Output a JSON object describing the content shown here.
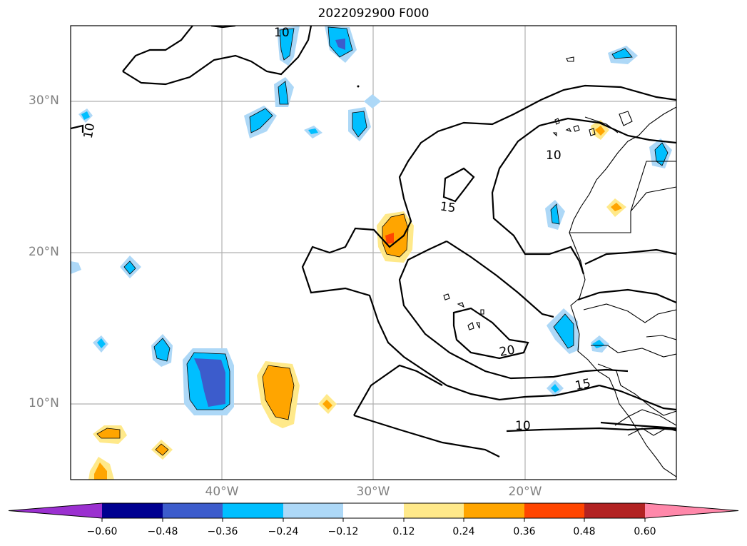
{
  "title": "2022092900 F000",
  "map": {
    "lat_labels": [
      "30°N",
      "20°N",
      "10°N"
    ],
    "lon_labels": [
      "40°W",
      "30°W",
      "20°W"
    ],
    "contour_labels": [
      "10",
      "10",
      "10",
      "15",
      "20",
      "15",
      "10"
    ]
  },
  "colorbar": {
    "tick_labels": [
      "−0.60",
      "−0.48",
      "−0.36",
      "−0.24",
      "−0.12",
      "0.12",
      "0.24",
      "0.36",
      "0.48",
      "0.60"
    ],
    "colors": [
      "#9b30d0",
      "#000090",
      "#3c5ccc",
      "#00bfff",
      "#add8f7",
      "#ffffff",
      "#ffe98a",
      "#ffa500",
      "#ff4500",
      "#b22222",
      "#ff88aa"
    ]
  }
}
